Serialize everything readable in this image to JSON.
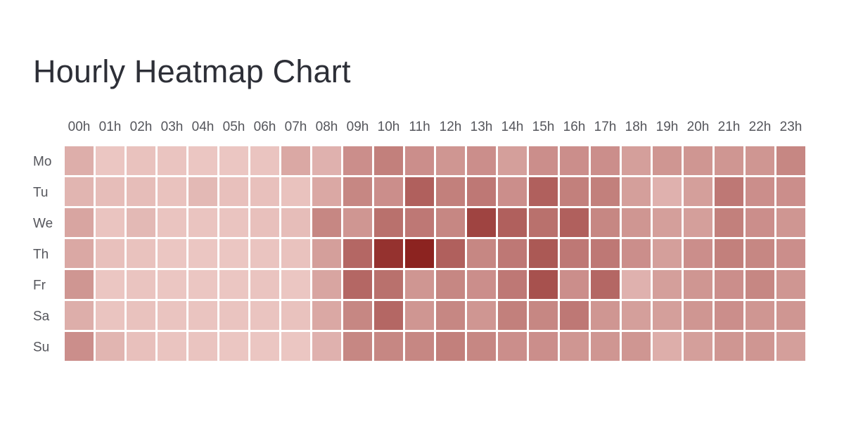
{
  "chart_data": {
    "type": "heatmap",
    "title": "Hourly Heatmap Chart",
    "x_categories": [
      "00h",
      "01h",
      "02h",
      "03h",
      "04h",
      "05h",
      "06h",
      "07h",
      "08h",
      "09h",
      "10h",
      "11h",
      "12h",
      "13h",
      "14h",
      "15h",
      "16h",
      "17h",
      "18h",
      "19h",
      "20h",
      "21h",
      "22h",
      "23h"
    ],
    "y_categories": [
      "Mo",
      "Tu",
      "We",
      "Th",
      "Fr",
      "Sa",
      "Su"
    ],
    "values": [
      [
        25,
        12,
        14,
        13,
        12,
        12,
        13,
        28,
        23,
        42,
        50,
        42,
        38,
        42,
        33,
        42,
        42,
        42,
        33,
        38,
        38,
        38,
        38,
        46
      ],
      [
        21,
        17,
        17,
        14,
        19,
        15,
        15,
        14,
        28,
        46,
        42,
        67,
        50,
        54,
        42,
        67,
        50,
        50,
        33,
        23,
        33,
        54,
        42,
        42
      ],
      [
        30,
        13,
        19,
        13,
        13,
        13,
        15,
        17,
        46,
        38,
        58,
        54,
        46,
        82,
        67,
        58,
        67,
        46,
        38,
        33,
        33,
        50,
        42,
        38
      ],
      [
        28,
        15,
        14,
        12,
        12,
        12,
        13,
        14,
        33,
        63,
        92,
        100,
        67,
        46,
        54,
        71,
        54,
        54,
        42,
        33,
        42,
        50,
        46,
        42
      ],
      [
        38,
        12,
        13,
        12,
        12,
        12,
        13,
        12,
        30,
        63,
        58,
        38,
        46,
        42,
        54,
        75,
        42,
        63,
        23,
        33,
        38,
        42,
        46,
        38
      ],
      [
        25,
        13,
        14,
        13,
        13,
        13,
        13,
        14,
        28,
        46,
        63,
        38,
        46,
        38,
        50,
        46,
        54,
        38,
        33,
        33,
        38,
        42,
        38,
        38
      ],
      [
        42,
        21,
        15,
        13,
        13,
        12,
        12,
        12,
        23,
        46,
        46,
        46,
        50,
        46,
        42,
        42,
        38,
        38,
        38,
        25,
        33,
        38,
        38,
        33
      ]
    ],
    "scale": {
      "min": 0,
      "max": 100,
      "color_low": "#f8dcd8",
      "color_high": "#8c2320"
    },
    "legend": "none",
    "grid": false
  }
}
